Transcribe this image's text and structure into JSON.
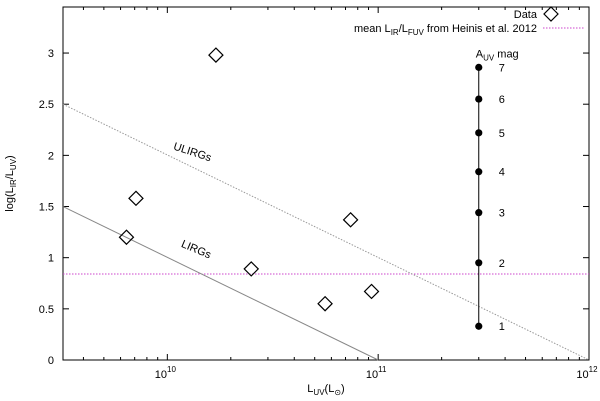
{
  "chart_data": {
    "type": "scatter",
    "xscale": "log",
    "yscale": "linear",
    "xlim": [
      3200000000.0,
      1000000000000.0
    ],
    "ylim": [
      0,
      3.45
    ],
    "grid": false,
    "legend_position": "top-right",
    "xlabel": {
      "main": "L",
      "sub": "UV",
      "tail": "(L",
      "tail_sub": "⊙",
      "close": ")"
    },
    "ylabel": {
      "pre": "log(L",
      "sub1": "IR",
      "mid": "/L",
      "sub2": "UV",
      "close": ")"
    },
    "x_ticks": [
      {
        "value": 10000000000.0,
        "base": "10",
        "exp": "10"
      },
      {
        "value": 100000000000.0,
        "base": "10",
        "exp": "11"
      },
      {
        "value": 1000000000000.0,
        "base": "10",
        "exp": "12"
      }
    ],
    "y_ticks": [
      {
        "value": 0,
        "label": "0"
      },
      {
        "value": 0.5,
        "label": "0.5"
      },
      {
        "value": 1,
        "label": "1"
      },
      {
        "value": 1.5,
        "label": "1.5"
      },
      {
        "value": 2,
        "label": "2"
      },
      {
        "value": 2.5,
        "label": "2.5"
      },
      {
        "value": 3,
        "label": "3"
      }
    ],
    "series": [
      {
        "name": "Data",
        "marker": "diamond",
        "color": "#000000",
        "points": [
          {
            "x": 17000000000.0,
            "y": 2.98
          },
          {
            "x": 7100000000.0,
            "y": 1.58
          },
          {
            "x": 6400000000.0,
            "y": 1.2
          },
          {
            "x": 25000000000.0,
            "y": 0.89
          },
          {
            "x": 74000000000.0,
            "y": 1.37
          },
          {
            "x": 56000000000.0,
            "y": 0.55
          },
          {
            "x": 93000000000.0,
            "y": 0.67
          }
        ]
      }
    ],
    "reference_lines": [
      {
        "name": "mean",
        "legend_label": {
          "pre": "mean L",
          "sub1": "IR",
          "mid": "/L",
          "sub2": "FUV",
          "post": " from Heinis et al. 2012"
        },
        "y": 0.84,
        "color": "#cc44cc",
        "style": "dotted"
      },
      {
        "name": "LIRGs",
        "label": "LIRGs",
        "x_start": 3200000000.0,
        "y_start": 1.5,
        "x_end": 100000000000.0,
        "y_end": 0,
        "color": "#888888",
        "style": "solid"
      },
      {
        "name": "ULIRGs",
        "label": "ULIRGs",
        "x_start": 3200000000.0,
        "y_start": 2.5,
        "x_end": 1000000000000.0,
        "y_end": 0,
        "color": "#999999",
        "style": "dotted"
      }
    ],
    "annotations": {
      "label_positions": {
        "LIRGs": {
          "x": 13500000000.0,
          "y": 1.05,
          "angle_deg": 23
        },
        "ULIRGs": {
          "x": 13000000000.0,
          "y": 2.0,
          "angle_deg": 18
        }
      },
      "extinction_scale": {
        "title": {
          "pre": "A",
          "sub": "UV",
          "post": " mag"
        },
        "x": 300000000000.0,
        "points": [
          {
            "y": 0.33,
            "label": "1"
          },
          {
            "y": 0.95,
            "label": "2"
          },
          {
            "y": 1.44,
            "label": "3"
          },
          {
            "y": 1.84,
            "label": "4"
          },
          {
            "y": 2.22,
            "label": "5"
          },
          {
            "y": 2.55,
            "label": "6"
          },
          {
            "y": 2.86,
            "label": "7"
          }
        ]
      }
    }
  }
}
